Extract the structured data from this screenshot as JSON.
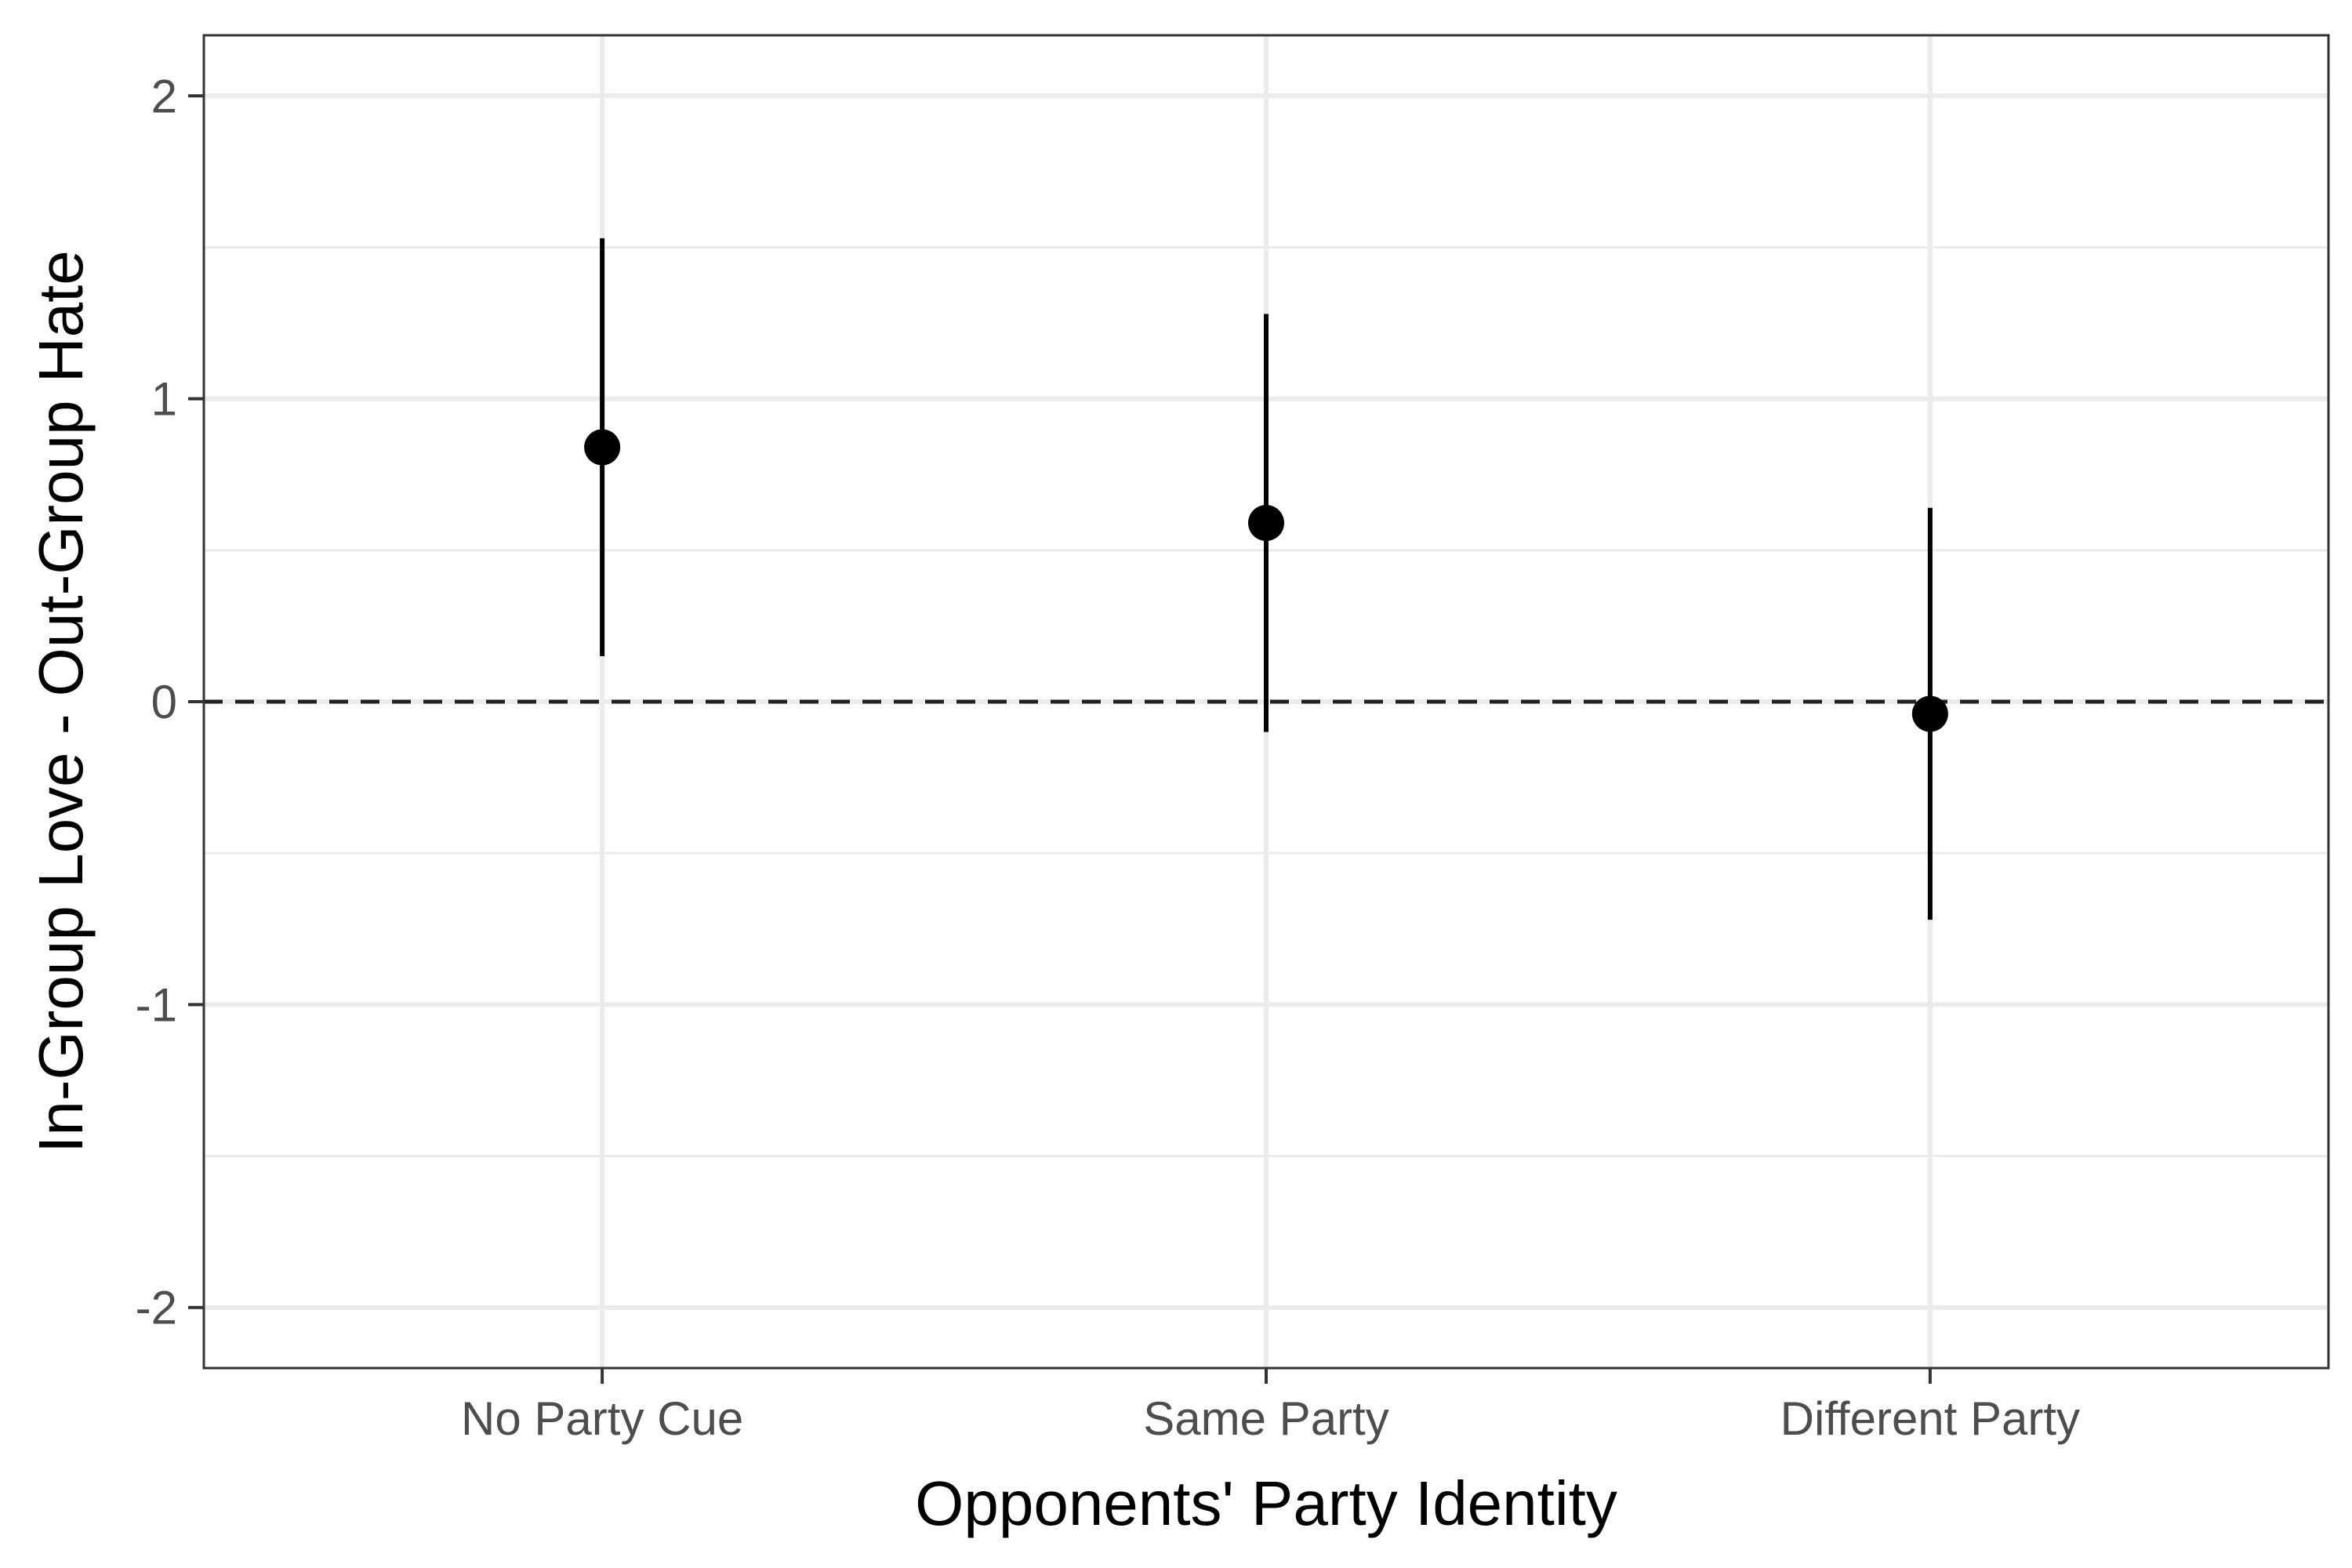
{
  "chart_data": {
    "type": "scatter",
    "subtype": "point-range",
    "title": "",
    "xlabel": "Opponents' Party Identity",
    "ylabel": "In-Group Love - Out-Group Hate",
    "categories": [
      "No Party Cue",
      "Same Party",
      "Different Party"
    ],
    "estimates": [
      0.84,
      0.59,
      -0.04
    ],
    "lower": [
      0.15,
      -0.1,
      -0.72
    ],
    "upper": [
      1.53,
      1.28,
      0.64
    ],
    "ylim": [
      -2.2,
      2.2
    ],
    "yticks": [
      -2,
      -1,
      0,
      1,
      2
    ],
    "ytick_labels": [
      "-2",
      "-1",
      "0",
      "1",
      "2"
    ],
    "reference_line": 0,
    "grid": true,
    "legend": "none",
    "colors": {
      "points": "#000000",
      "grid": "#ebebeb",
      "reference_line": "#222222",
      "panel_border": "#333333"
    }
  }
}
